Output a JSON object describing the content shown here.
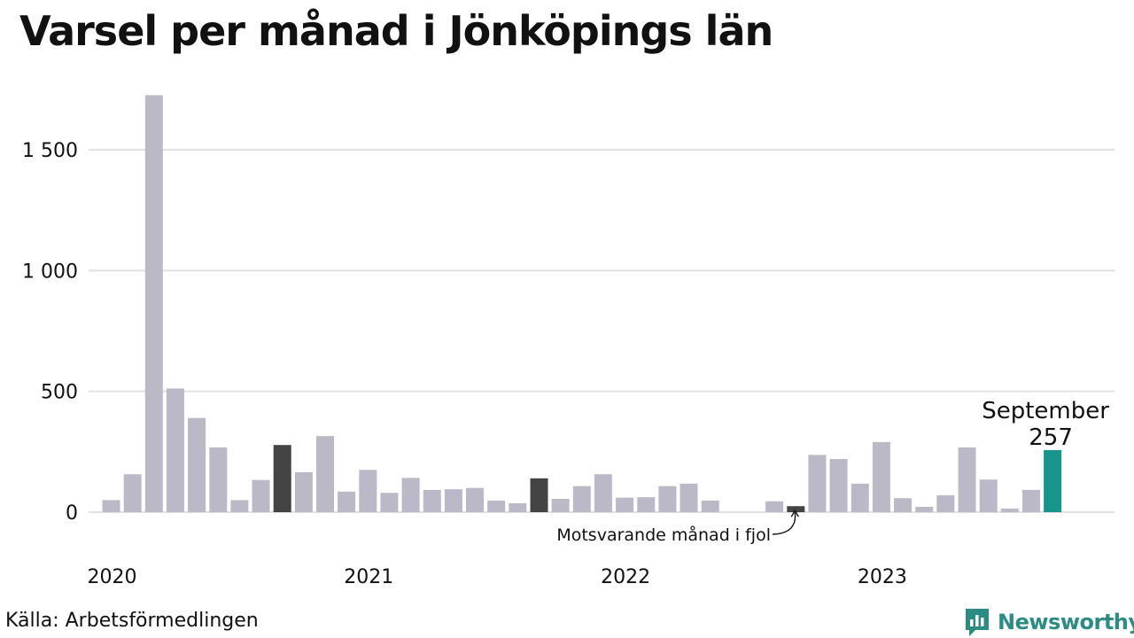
{
  "title": "Varsel per månad i Jönköpings län",
  "source": "Källa: Arbetsförmedlingen",
  "brand": {
    "name": "Newsworthy",
    "color": "#2a8c83"
  },
  "colors": {
    "default": "#bbb9c8",
    "comparison": "#444444",
    "highlight": "#16968a",
    "grid": "#e0e0e5"
  },
  "chart_data": {
    "type": "bar",
    "ylim": [
      0,
      1750
    ],
    "y_ticks": [
      {
        "value": 0,
        "label": "0"
      },
      {
        "value": 500,
        "label": "500"
      },
      {
        "value": 1000,
        "label": "1 000"
      },
      {
        "value": 1500,
        "label": "1 500"
      }
    ],
    "year_labels": [
      {
        "index": 0,
        "label": "2020"
      },
      {
        "index": 12,
        "label": "2021"
      },
      {
        "index": 24,
        "label": "2022"
      },
      {
        "index": 36,
        "label": "2023"
      }
    ],
    "series": [
      {
        "values": [
          50,
          157,
          1726,
          512,
          390,
          268,
          50,
          133,
          278,
          165,
          315,
          85,
          175,
          80,
          142,
          92,
          95,
          100,
          48,
          37,
          140,
          55,
          108,
          157,
          60,
          62,
          108,
          118,
          48,
          0,
          0,
          45,
          25,
          237,
          220,
          118,
          290,
          58,
          22,
          70,
          268,
          135,
          15,
          92,
          257
        ],
        "comparison_indices": [
          8,
          20,
          32
        ],
        "highlight_index": 44
      }
    ],
    "highlight_label": {
      "month": "September",
      "value": "257"
    },
    "annotation": "Motsvarande månad i fjol"
  }
}
